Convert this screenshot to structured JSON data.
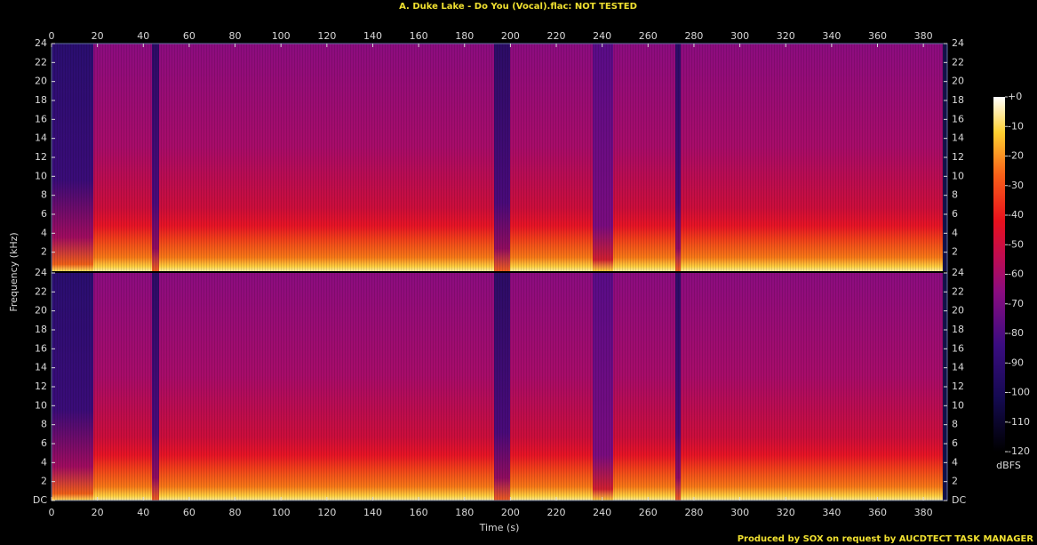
{
  "chart_data": {
    "type": "spectrogram",
    "title": "A. Duke Lake - Do You (Vocal).flac: NOT TESTED",
    "footer": "Produced by SOX on request by AUCDTECT TASK MANAGER",
    "xlabel": "Time (s)",
    "ylabel": "Frequency (kHz)",
    "xlim": [
      0,
      390.4
    ],
    "xticks": [
      0,
      20,
      40,
      60,
      80,
      100,
      120,
      140,
      160,
      180,
      200,
      220,
      240,
      260,
      280,
      300,
      320,
      340,
      360,
      380
    ],
    "ylim": [
      0,
      24
    ],
    "yticks": [
      {
        "value": 0,
        "label": "DC"
      },
      2,
      4,
      6,
      8,
      10,
      12,
      14,
      16,
      18,
      20,
      22,
      24
    ],
    "colorbar": {
      "label": "dBFS",
      "lim": [
        -120,
        0
      ],
      "ticks": [
        {
          "value": 0,
          "label": "+0"
        },
        -10,
        -20,
        -30,
        -40,
        -50,
        -60,
        -70,
        -80,
        -90,
        -100,
        -110,
        -120
      ]
    }
  }
}
